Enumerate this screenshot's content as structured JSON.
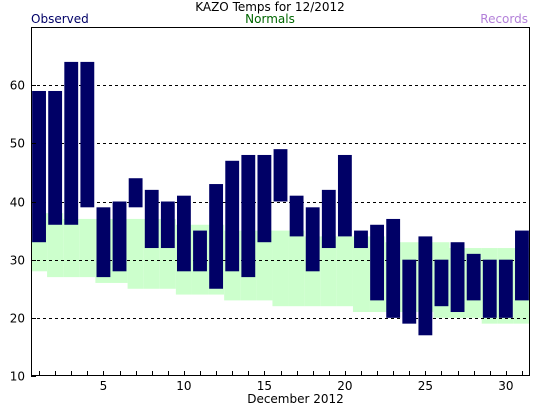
{
  "chart_data": {
    "type": "bar",
    "title": "KAZO Temps for  12/2012",
    "xlabel": "December 2012",
    "ylabel": "",
    "x_ticks": [
      5,
      10,
      15,
      20,
      25,
      30
    ],
    "y_ticks": [
      10,
      20,
      30,
      40,
      50,
      60
    ],
    "xlim": [
      0.5,
      31.5
    ],
    "ylim": [
      10,
      70
    ],
    "grid": "horizontal dashed",
    "legend": [
      "Observed",
      "Normals",
      "Records"
    ],
    "colors": {
      "observed": "#000066",
      "normals": "#ccffcc",
      "records": "#b380d9",
      "normals_label": "#006600"
    },
    "days": [
      1,
      2,
      3,
      4,
      5,
      6,
      7,
      8,
      9,
      10,
      11,
      12,
      13,
      14,
      15,
      16,
      17,
      18,
      19,
      20,
      21,
      22,
      23,
      24,
      25,
      26,
      27,
      28,
      29,
      30,
      31
    ],
    "observed_high": [
      59,
      59,
      64,
      64,
      39,
      40,
      44,
      42,
      40,
      41,
      35,
      43,
      47,
      48,
      48,
      49,
      41,
      39,
      42,
      48,
      35,
      36,
      37,
      30,
      34,
      30,
      33,
      31,
      30,
      30,
      35
    ],
    "observed_low": [
      33,
      36,
      36,
      39,
      27,
      28,
      39,
      32,
      32,
      28,
      28,
      25,
      28,
      27,
      33,
      40,
      34,
      28,
      32,
      34,
      32,
      23,
      20,
      19,
      17,
      22,
      21,
      23,
      20,
      20,
      23
    ],
    "normal_high": [
      38,
      38,
      37,
      37,
      37,
      37,
      37,
      37,
      37,
      36,
      36,
      36,
      35,
      35,
      35,
      35,
      35,
      34,
      34,
      34,
      34,
      34,
      33,
      33,
      33,
      33,
      32,
      32,
      32,
      32,
      32
    ],
    "normal_low": [
      28,
      27,
      27,
      27,
      26,
      26,
      25,
      25,
      25,
      24,
      24,
      24,
      23,
      23,
      23,
      22,
      22,
      22,
      22,
      22,
      21,
      21,
      21,
      21,
      21,
      20,
      20,
      20,
      19,
      19,
      19
    ]
  }
}
